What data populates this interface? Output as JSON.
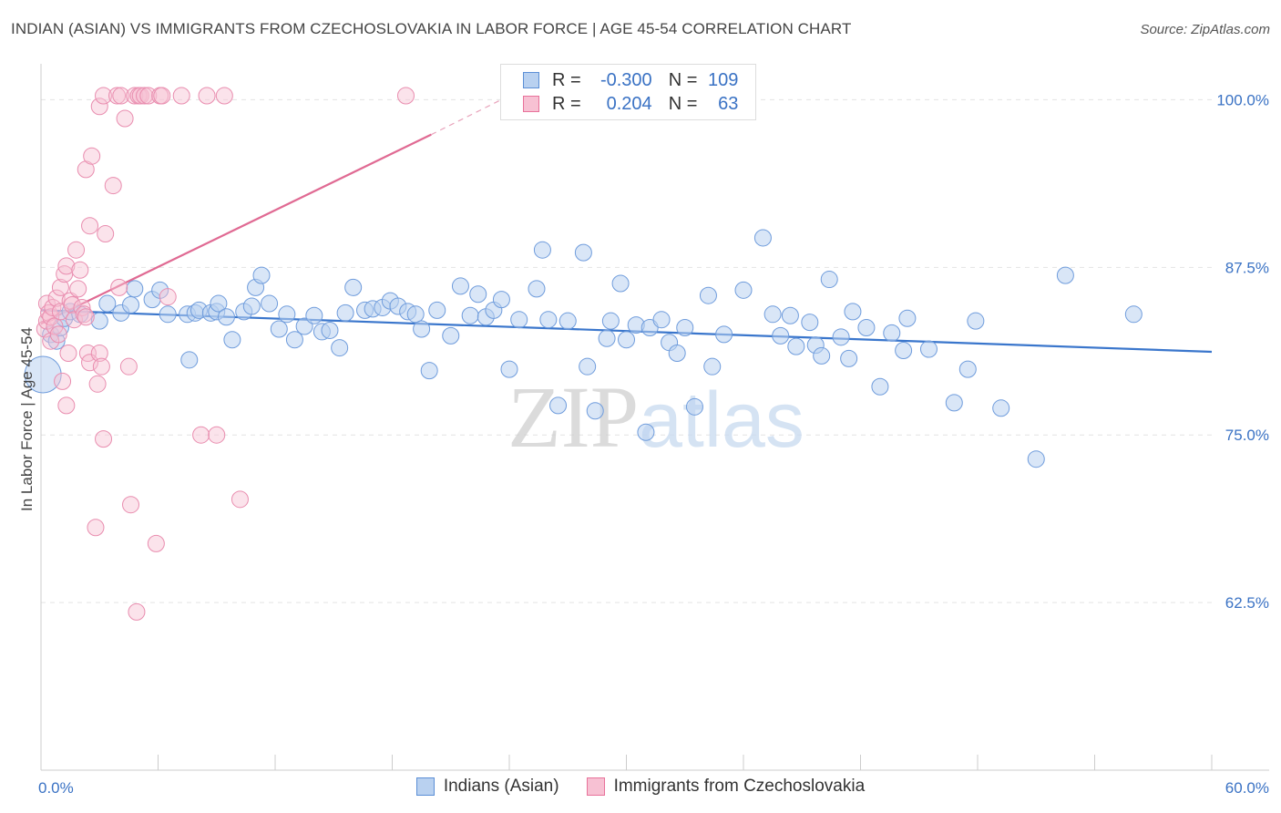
{
  "title": "INDIAN (ASIAN) VS IMMIGRANTS FROM CZECHOSLOVAKIA IN LABOR FORCE | AGE 45-54 CORRELATION CHART",
  "source": "Source: ZipAtlas.com",
  "colors": {
    "blue": "#5b8fd6",
    "blue_fill": "#b9d1f0",
    "pink": "#e8729a",
    "pink_fill": "#f7c1d3",
    "axis_label": "#3a72c4",
    "grid": "#e3e3e3"
  },
  "legend": {
    "rows": [
      {
        "r_label": "R =",
        "r_value": "-0.300",
        "n_label": "N =",
        "n_value": "109"
      },
      {
        "r_label": "R =",
        "r_value": "0.204",
        "n_label": "N =",
        "n_value": "63"
      }
    ]
  },
  "chart_data": {
    "type": "scatter",
    "xlabel": "",
    "ylabel": "In Labor Force | Age 45-54",
    "xlim": [
      0,
      60
    ],
    "ylim": [
      50,
      102
    ],
    "x_tick_labels": [
      "0.0%",
      "60.0%"
    ],
    "y_ticks": [
      62.5,
      75.0,
      87.5,
      100.0
    ],
    "y_tick_labels": [
      "62.5%",
      "75.0%",
      "87.5%",
      "100.0%"
    ],
    "grid": "horizontal dashed",
    "legend_position": "top-center",
    "watermark": "ZIPatlas",
    "series": [
      {
        "name": "Indians (Asian)",
        "color": "#5b8fd6",
        "trend": {
          "x0": 0,
          "y0": 84.3,
          "x1": 60,
          "y1": 81.2
        },
        "points": [
          [
            0.1,
            79.5
          ],
          [
            0.5,
            82.5
          ],
          [
            0.8,
            82.0
          ],
          [
            1.0,
            83.0
          ],
          [
            1.2,
            83.7
          ],
          [
            1.5,
            84.2
          ],
          [
            2.0,
            84.0
          ],
          [
            3.0,
            83.5
          ],
          [
            3.4,
            84.8
          ],
          [
            4.1,
            84.1
          ],
          [
            4.6,
            84.7
          ],
          [
            4.8,
            85.9
          ],
          [
            5.7,
            85.1
          ],
          [
            6.1,
            85.8
          ],
          [
            6.5,
            84.0
          ],
          [
            7.5,
            84.0
          ],
          [
            7.6,
            80.6
          ],
          [
            7.9,
            84.1
          ],
          [
            8.1,
            84.3
          ],
          [
            8.7,
            84.1
          ],
          [
            9.0,
            84.2
          ],
          [
            9.1,
            84.8
          ],
          [
            9.5,
            83.8
          ],
          [
            9.8,
            82.1
          ],
          [
            10.4,
            84.2
          ],
          [
            11.0,
            86.0
          ],
          [
            10.8,
            84.6
          ],
          [
            11.3,
            86.9
          ],
          [
            11.7,
            84.8
          ],
          [
            12.2,
            82.9
          ],
          [
            12.6,
            84.0
          ],
          [
            13.0,
            82.1
          ],
          [
            13.5,
            83.1
          ],
          [
            14.0,
            83.9
          ],
          [
            14.4,
            82.7
          ],
          [
            14.8,
            82.8
          ],
          [
            15.3,
            81.5
          ],
          [
            15.6,
            84.1
          ],
          [
            16.0,
            86.0
          ],
          [
            16.6,
            84.3
          ],
          [
            17.0,
            84.4
          ],
          [
            17.5,
            84.5
          ],
          [
            17.9,
            85.0
          ],
          [
            18.3,
            84.6
          ],
          [
            18.8,
            84.2
          ],
          [
            19.2,
            84.0
          ],
          [
            19.5,
            82.9
          ],
          [
            19.9,
            79.8
          ],
          [
            20.3,
            84.3
          ],
          [
            21.0,
            82.4
          ],
          [
            21.5,
            86.1
          ],
          [
            22.0,
            83.9
          ],
          [
            22.4,
            85.5
          ],
          [
            22.8,
            83.8
          ],
          [
            23.2,
            84.3
          ],
          [
            23.6,
            85.1
          ],
          [
            24.0,
            79.9
          ],
          [
            24.5,
            83.6
          ],
          [
            25.4,
            85.9
          ],
          [
            25.7,
            88.8
          ],
          [
            26.0,
            83.6
          ],
          [
            26.5,
            77.2
          ],
          [
            27.0,
            83.5
          ],
          [
            27.8,
            88.6
          ],
          [
            28.0,
            80.1
          ],
          [
            28.4,
            76.8
          ],
          [
            29.0,
            82.2
          ],
          [
            29.2,
            83.5
          ],
          [
            29.7,
            86.3
          ],
          [
            30.0,
            82.1
          ],
          [
            30.5,
            83.2
          ],
          [
            31.0,
            75.2
          ],
          [
            31.2,
            83.0
          ],
          [
            31.8,
            83.6
          ],
          [
            32.2,
            81.9
          ],
          [
            32.6,
            81.1
          ],
          [
            33.0,
            83.0
          ],
          [
            33.5,
            77.1
          ],
          [
            34.2,
            85.4
          ],
          [
            34.4,
            80.1
          ],
          [
            35.0,
            82.5
          ],
          [
            36.0,
            85.8
          ],
          [
            37.0,
            89.7
          ],
          [
            37.5,
            84.0
          ],
          [
            37.9,
            82.4
          ],
          [
            38.4,
            83.9
          ],
          [
            38.7,
            81.6
          ],
          [
            39.4,
            83.4
          ],
          [
            39.7,
            81.7
          ],
          [
            40.0,
            80.9
          ],
          [
            40.4,
            86.6
          ],
          [
            41.0,
            82.3
          ],
          [
            41.4,
            80.7
          ],
          [
            41.6,
            84.2
          ],
          [
            42.3,
            83.0
          ],
          [
            43.0,
            78.6
          ],
          [
            43.6,
            82.6
          ],
          [
            44.2,
            81.3
          ],
          [
            44.4,
            83.7
          ],
          [
            45.5,
            81.4
          ],
          [
            46.8,
            77.4
          ],
          [
            47.5,
            79.9
          ],
          [
            47.9,
            83.5
          ],
          [
            49.2,
            77.0
          ],
          [
            51.0,
            73.2
          ],
          [
            52.5,
            86.9
          ],
          [
            56.0,
            84.0
          ]
        ]
      },
      {
        "name": "Immigrants from Czechoslovakia",
        "color": "#e8729a",
        "trend": {
          "x0": 0,
          "y0": 83.3,
          "x1": 20,
          "y1": 97.4,
          "dashed_to": {
            "x": 24,
            "y": 100.3
          }
        },
        "points": [
          [
            0.2,
            82.9
          ],
          [
            0.3,
            83.5
          ],
          [
            0.3,
            84.8
          ],
          [
            0.4,
            84.1
          ],
          [
            0.5,
            83.8
          ],
          [
            0.5,
            82.0
          ],
          [
            0.6,
            84.5
          ],
          [
            0.7,
            83.1
          ],
          [
            0.8,
            85.2
          ],
          [
            0.9,
            82.5
          ],
          [
            1.0,
            84.2
          ],
          [
            1.0,
            86.0
          ],
          [
            1.1,
            79.0
          ],
          [
            1.2,
            87.0
          ],
          [
            1.3,
            77.2
          ],
          [
            1.3,
            87.6
          ],
          [
            1.4,
            81.1
          ],
          [
            1.5,
            85.0
          ],
          [
            1.6,
            84.7
          ],
          [
            1.7,
            83.6
          ],
          [
            1.8,
            88.8
          ],
          [
            1.9,
            85.9
          ],
          [
            2.0,
            87.3
          ],
          [
            2.1,
            84.5
          ],
          [
            2.2,
            84.0
          ],
          [
            2.3,
            83.8
          ],
          [
            2.3,
            94.8
          ],
          [
            2.4,
            81.1
          ],
          [
            2.5,
            80.4
          ],
          [
            2.5,
            90.6
          ],
          [
            2.6,
            95.8
          ],
          [
            2.8,
            68.1
          ],
          [
            2.9,
            78.8
          ],
          [
            3.0,
            81.1
          ],
          [
            3.1,
            80.1
          ],
          [
            3.2,
            74.7
          ],
          [
            3.3,
            90.0
          ],
          [
            3.0,
            99.5
          ],
          [
            3.2,
            100.3
          ],
          [
            3.7,
            93.6
          ],
          [
            3.9,
            100.3
          ],
          [
            4.0,
            86.0
          ],
          [
            4.1,
            100.3
          ],
          [
            4.3,
            98.6
          ],
          [
            4.5,
            80.1
          ],
          [
            4.6,
            69.8
          ],
          [
            4.8,
            100.3
          ],
          [
            4.9,
            61.8
          ],
          [
            5.0,
            100.3
          ],
          [
            5.1,
            100.3
          ],
          [
            5.3,
            100.3
          ],
          [
            5.5,
            100.3
          ],
          [
            5.9,
            66.9
          ],
          [
            6.1,
            100.3
          ],
          [
            6.2,
            100.3
          ],
          [
            6.5,
            85.3
          ],
          [
            7.2,
            100.3
          ],
          [
            8.2,
            75.0
          ],
          [
            8.5,
            100.3
          ],
          [
            9.0,
            75.0
          ],
          [
            9.4,
            100.3
          ],
          [
            10.2,
            70.2
          ],
          [
            18.7,
            100.3
          ]
        ]
      }
    ]
  },
  "bottom_legend": [
    "Indians (Asian)",
    "Immigrants from Czechoslovakia"
  ]
}
